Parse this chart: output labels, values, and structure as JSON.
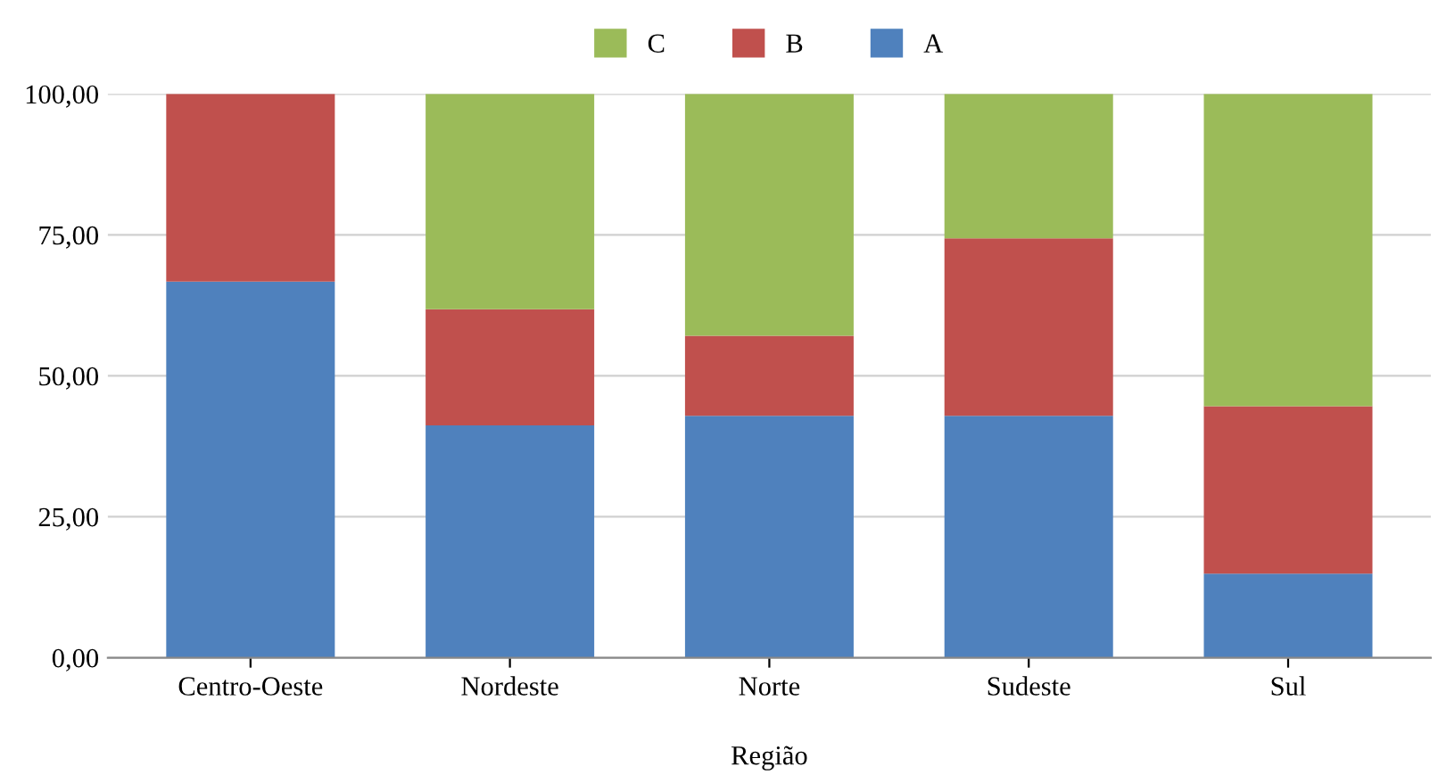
{
  "chart_data": {
    "type": "bar",
    "stacked": true,
    "xlabel": "Região",
    "categories": [
      "Centro-Oeste",
      "Nordeste",
      "Norte",
      "Sudeste",
      "Sul"
    ],
    "series": [
      {
        "name": "A",
        "color": "#4f81bd",
        "values": [
          66.7,
          41.2,
          42.9,
          42.9,
          14.9
        ]
      },
      {
        "name": "B",
        "color": "#c0504d",
        "values": [
          33.3,
          20.6,
          14.2,
          31.5,
          29.7
        ]
      },
      {
        "name": "C",
        "color": "#9bbb59",
        "values": [
          0,
          38.2,
          42.9,
          25.6,
          55.4
        ]
      }
    ],
    "ylim": [
      0,
      100
    ],
    "yticks": [
      {
        "value": 0,
        "label": "0,00"
      },
      {
        "value": 25,
        "label": "25,00"
      },
      {
        "value": 50,
        "label": "50,00"
      },
      {
        "value": 75,
        "label": "75,00"
      },
      {
        "value": 100,
        "label": "100,00"
      }
    ],
    "grid": "y",
    "legend": "top"
  }
}
